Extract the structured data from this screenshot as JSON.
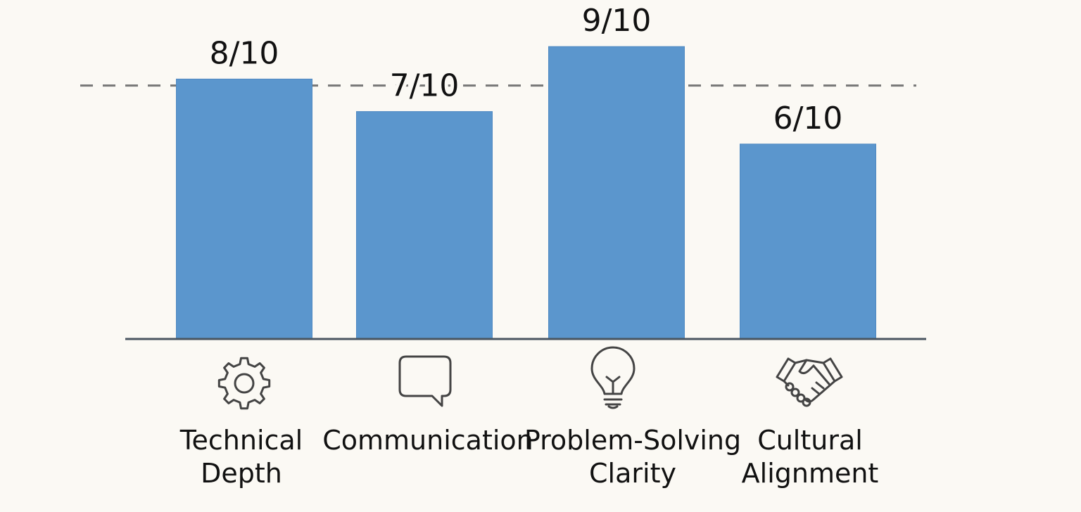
{
  "chart_data": {
    "type": "bar",
    "categories": [
      {
        "lines": [
          "Technical",
          "Depth"
        ],
        "icon": "gear-icon"
      },
      {
        "lines": [
          "Communication"
        ],
        "icon": "speech-bubble-icon"
      },
      {
        "lines": [
          "Problem-Solving",
          "Clarity"
        ],
        "icon": "lightbulb-icon"
      },
      {
        "lines": [
          "Cultural",
          "Alignment"
        ],
        "icon": "handshake-icon"
      }
    ],
    "values": [
      8,
      7,
      9,
      6
    ],
    "value_labels": [
      "8/10",
      "7/10",
      "9/10",
      "6/10"
    ],
    "reference_line": {
      "value": 7.8,
      "style": "dashed"
    },
    "ylim": [
      0,
      10
    ],
    "grid": false,
    "title": "",
    "xlabel": "",
    "ylabel": "",
    "colors": {
      "bar": "#5b96cd",
      "bar_edge": "#4f89c2",
      "baseline": "#4a5560",
      "reference_line": "#777777",
      "icon_stroke": "#444444",
      "text": "#111111",
      "background": "#fbf9f4"
    }
  }
}
